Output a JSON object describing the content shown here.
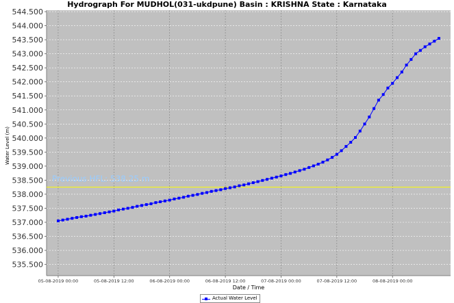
{
  "chart_data": {
    "type": "line",
    "title": "Hydrograph For MUDHOL(031-ukdpune) Basin : KRISHNA State : Karnataka",
    "xlabel": "Date / Time",
    "ylabel": "Water Level (m)",
    "x_start": "2019-08-05 00:00",
    "x_ticks": [
      "05-08-2019 00:00",
      "05-08-2019 12:00",
      "06-08-2019 00:00",
      "06-08-2019 12:00",
      "07-08-2019 00:00",
      "07-08-2019 12:00",
      "08-08-2019 00:00"
    ],
    "y_ticks": [
      "535.500",
      "536.000",
      "536.500",
      "537.000",
      "537.500",
      "538.000",
      "538.500",
      "539.000",
      "539.500",
      "540.000",
      "540.500",
      "541.000",
      "541.500",
      "542.000",
      "542.500",
      "543.000",
      "543.500",
      "544.000",
      "544.500"
    ],
    "ylim": [
      535.1,
      544.55
    ],
    "xlim_hours": [
      -2.5,
      84.5
    ],
    "grid": true,
    "background_color": "#c0c0c0",
    "series_color": "#0000ff",
    "reference_line": {
      "label": "Previous HFL: 538.25 m",
      "value": 538.25,
      "color": "#ffff00",
      "label_color": "#99ccff"
    },
    "legend": {
      "position": "bottom-center",
      "entries": [
        "Actual Water Level"
      ]
    },
    "series": [
      {
        "name": "Actual Water Level",
        "x_hours": [
          0,
          1,
          2,
          3,
          4,
          5,
          6,
          7,
          8,
          9,
          10,
          11,
          12,
          13,
          14,
          15,
          16,
          17,
          18,
          19,
          20,
          21,
          22,
          23,
          24,
          25,
          26,
          27,
          28,
          29,
          30,
          31,
          32,
          33,
          34,
          35,
          36,
          37,
          38,
          39,
          40,
          41,
          42,
          43,
          44,
          45,
          46,
          47,
          48,
          49,
          50,
          51,
          52,
          53,
          54,
          55,
          56,
          57,
          58,
          59,
          60,
          61,
          62,
          63,
          64,
          65,
          66,
          67,
          68,
          69,
          70,
          71,
          72,
          73,
          74,
          75,
          76,
          77,
          78,
          79,
          80,
          81,
          82
        ],
        "values": [
          537.05,
          537.08,
          537.11,
          537.14,
          537.17,
          537.2,
          537.22,
          537.25,
          537.28,
          537.31,
          537.34,
          537.37,
          537.4,
          537.44,
          537.47,
          537.5,
          537.53,
          537.57,
          537.6,
          537.63,
          537.66,
          537.7,
          537.73,
          537.76,
          537.79,
          537.83,
          537.86,
          537.89,
          537.93,
          537.96,
          537.99,
          538.03,
          538.06,
          538.1,
          538.13,
          538.16,
          538.2,
          538.23,
          538.26,
          538.3,
          538.33,
          538.37,
          538.41,
          538.45,
          538.49,
          538.53,
          538.57,
          538.61,
          538.65,
          538.7,
          538.74,
          538.79,
          538.84,
          538.89,
          538.95,
          539.01,
          539.07,
          539.14,
          539.22,
          539.31,
          539.42,
          539.55,
          539.7,
          539.85,
          540.02,
          540.25,
          540.5,
          540.75,
          541.05,
          541.35,
          541.55,
          541.78,
          541.95,
          542.15,
          542.35,
          542.6,
          542.8,
          543.0,
          543.12,
          543.25,
          543.35,
          543.45,
          543.55
        ]
      }
    ]
  }
}
